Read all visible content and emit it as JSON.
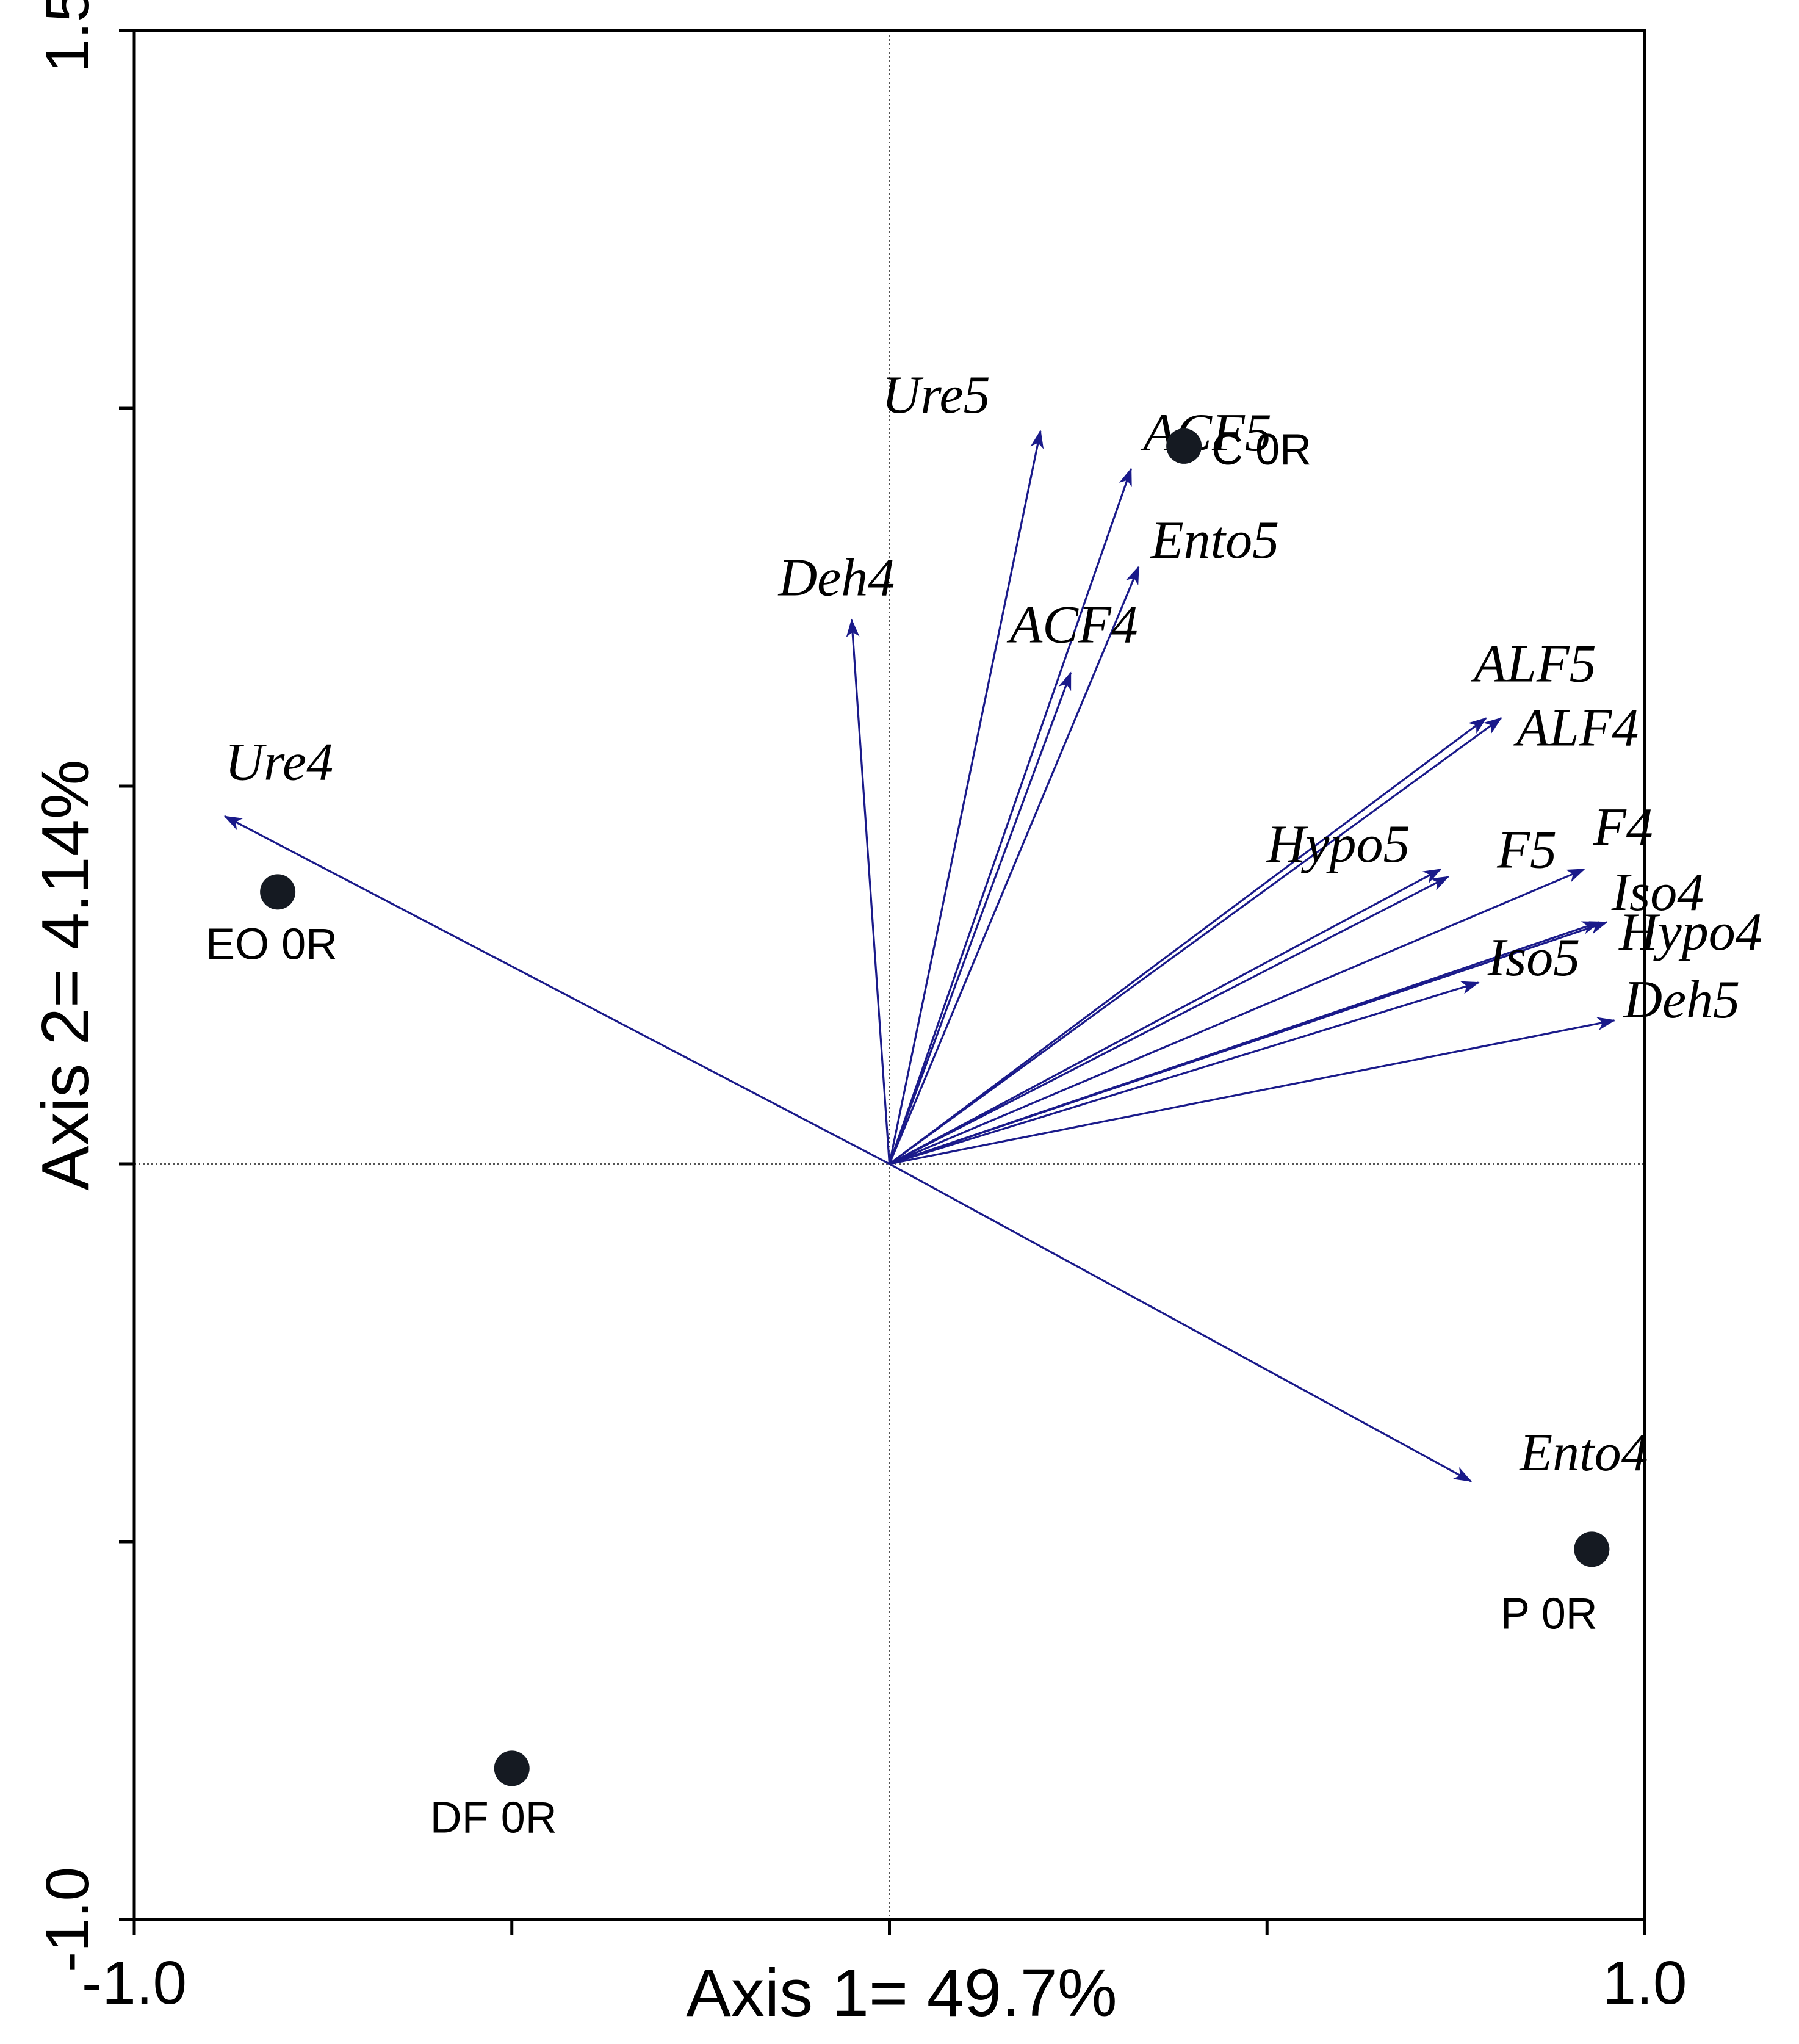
{
  "chart_data": {
    "type": "scatter",
    "subtype": "biplot",
    "xlabel": "Axis 1= 49.7%",
    "ylabel": "Axis 2= 4.14%",
    "xlim": [
      -1.0,
      1.0
    ],
    "ylim": [
      -1.0,
      1.5
    ],
    "x_tick_values": [
      -1.0,
      -0.5,
      0.0,
      0.5,
      1.0
    ],
    "x_tick_labels": [
      "-1.0",
      "",
      "",
      "",
      "1.0"
    ],
    "y_tick_values": [
      -1.0,
      -0.5,
      0.0,
      0.5,
      1.0,
      1.5
    ],
    "y_tick_labels": [
      "-1.0",
      "",
      "",
      "",
      "",
      "1.5"
    ],
    "reference_lines": {
      "x": 0,
      "y": 0,
      "style": "dotted"
    },
    "colors": {
      "vector": "#1a1a8a",
      "site": "#151a22",
      "axis": "#000000"
    },
    "sites": [
      {
        "label": "C 0R",
        "x": 0.39,
        "y": 0.95
      },
      {
        "label": "EO 0R",
        "x": -0.81,
        "y": 0.36
      },
      {
        "label": "P 0R",
        "x": 0.93,
        "y": -0.51
      },
      {
        "label": "DF 0R",
        "x": -0.5,
        "y": -0.8
      }
    ],
    "vectors": [
      {
        "label": "Ure5",
        "x": 0.2,
        "y": 0.97
      },
      {
        "label": "ACF5",
        "x": 0.32,
        "y": 0.92
      },
      {
        "label": "Ento5",
        "x": 0.33,
        "y": 0.79
      },
      {
        "label": "Deh4",
        "x": -0.05,
        "y": 0.72
      },
      {
        "label": "ACF4",
        "x": 0.24,
        "y": 0.65
      },
      {
        "label": "Ure4",
        "x": -0.88,
        "y": 0.46
      },
      {
        "label": "ALF5",
        "x": 0.79,
        "y": 0.59
      },
      {
        "label": "ALF4",
        "x": 0.81,
        "y": 0.59
      },
      {
        "label": "Hypo5",
        "x": 0.73,
        "y": 0.39
      },
      {
        "label": "F5",
        "x": 0.74,
        "y": 0.38
      },
      {
        "label": "F4",
        "x": 0.92,
        "y": 0.39
      },
      {
        "label": "Iso4",
        "x": 0.94,
        "y": 0.32
      },
      {
        "label": "Hypo4",
        "x": 0.95,
        "y": 0.32
      },
      {
        "label": "Iso5",
        "x": 0.78,
        "y": 0.24
      },
      {
        "label": "Deh5",
        "x": 0.96,
        "y": 0.19
      },
      {
        "label": "Ento4",
        "x": 0.77,
        "y": -0.42
      }
    ]
  }
}
